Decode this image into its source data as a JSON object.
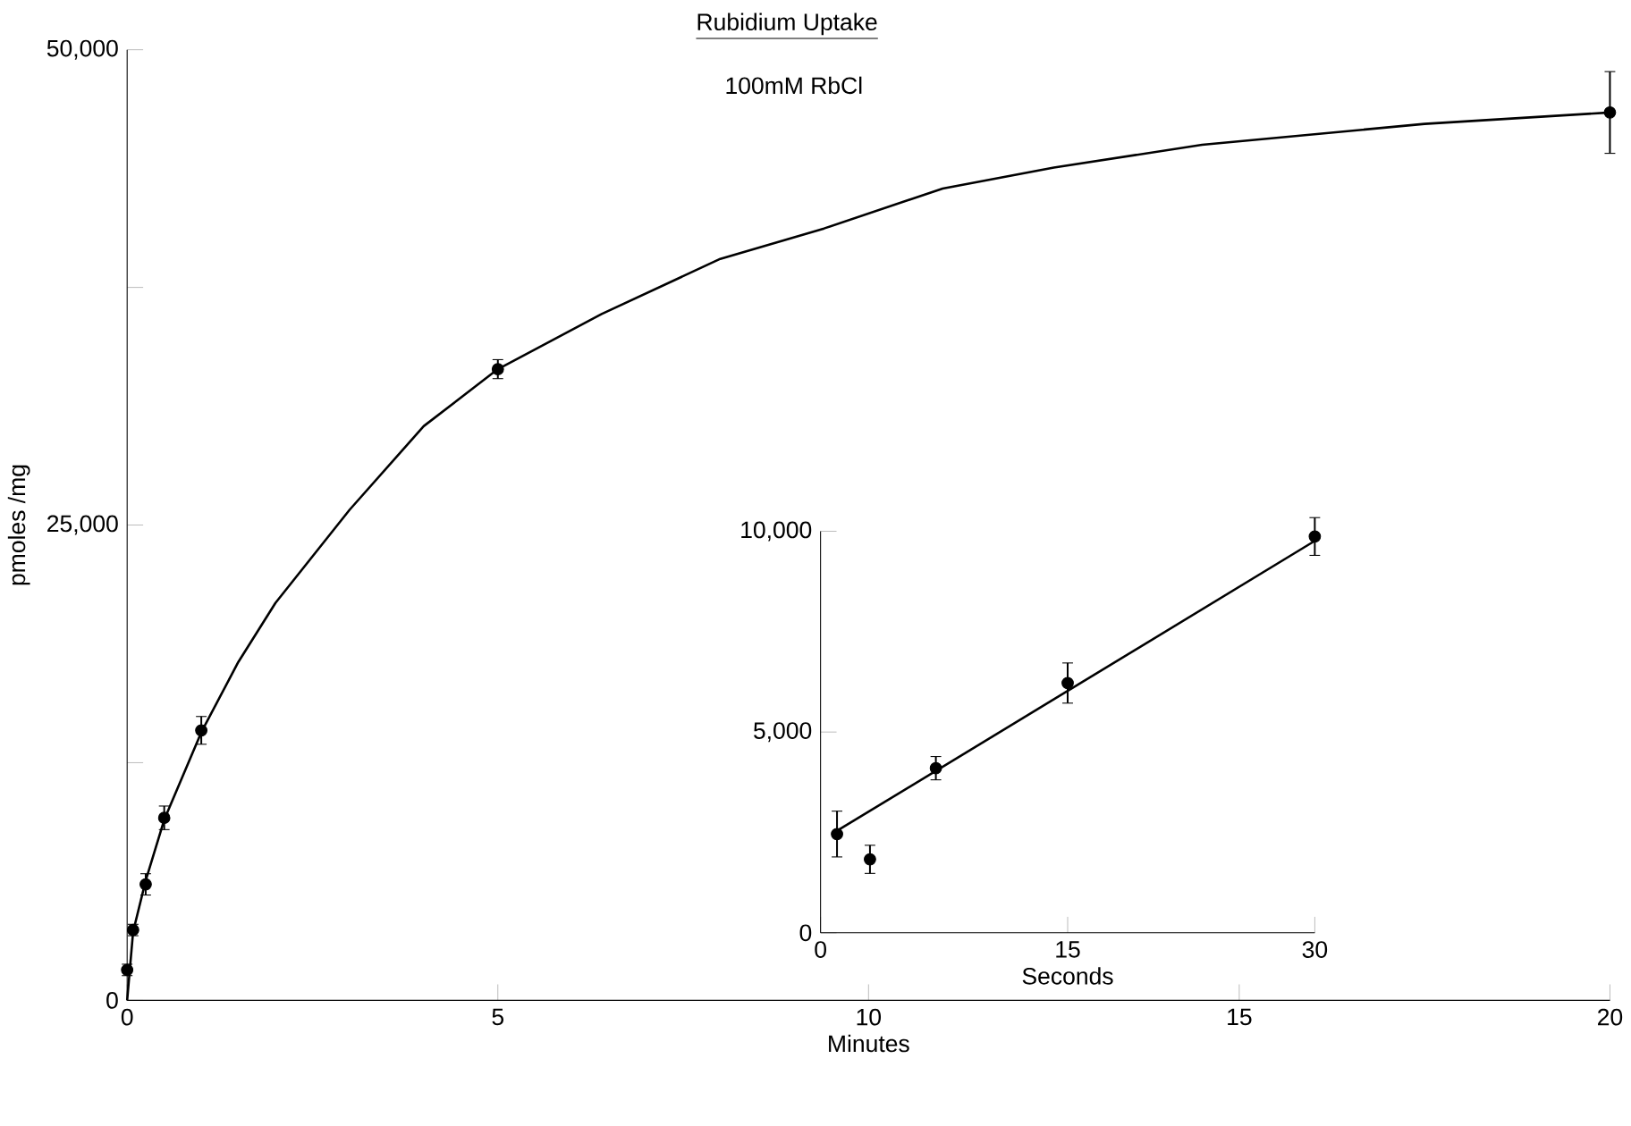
{
  "chart_data": [
    {
      "type": "scatter",
      "title": "Rubidium Uptake",
      "subtitle": "100mM RbCl",
      "xlabel": "Minutes",
      "ylabel": "pmoles /mg",
      "xlim": [
        0,
        20
      ],
      "ylim": [
        0,
        50000
      ],
      "xticks": [
        0,
        5,
        10,
        15,
        20
      ],
      "yticks": [
        0,
        {
          "value": 12500,
          "label": null
        },
        {
          "value": 25000,
          "label": "25,000"
        },
        {
          "value": 37500,
          "label": null
        },
        {
          "value": 50000,
          "label": "50,000"
        }
      ],
      "grid": false,
      "marker": "circle",
      "series": [
        {
          "type": "scatter",
          "color": "#000000",
          "x": [
            0,
            0.08,
            0.25,
            0.5,
            1,
            5,
            20
          ],
          "values": [
            1600,
            3700,
            6100,
            9600,
            14200,
            33200,
            46700
          ],
          "errors": [
            300,
            300,
            560,
            620,
            730,
            500,
            2150
          ]
        },
        {
          "type": "line",
          "color": "#000000",
          "marker": "none",
          "x": [
            0,
            0.08,
            0.25,
            0.5,
            1,
            1.5,
            2,
            3,
            4,
            5,
            6.4,
            8,
            9.4,
            11,
            12.5,
            14.5,
            17.5,
            20
          ],
          "values": [
            0,
            3600,
            6300,
            9500,
            14100,
            17800,
            20900,
            25800,
            30200,
            33200,
            36100,
            39000,
            40600,
            42700,
            43800,
            45000,
            46100,
            46700
          ]
        }
      ]
    },
    {
      "type": "scatter",
      "xlabel": "Seconds",
      "xlim": [
        0,
        30
      ],
      "ylim": [
        0,
        10000
      ],
      "xticks": [
        0,
        15,
        30
      ],
      "yticks": [
        0,
        {
          "value": 5000,
          "label": "5,000"
        },
        {
          "value": 10000,
          "label": "10,000"
        }
      ],
      "grid": false,
      "marker": "circle",
      "series": [
        {
          "type": "scatter",
          "color": "#000000",
          "x": [
            1,
            3,
            7,
            15,
            30
          ],
          "values": [
            2460,
            1830,
            4100,
            6220,
            9870
          ],
          "errors": [
            570,
            350,
            290,
            500,
            470
          ]
        },
        {
          "type": "line",
          "color": "#000000",
          "marker": "none",
          "x": [
            1,
            30
          ],
          "values": [
            2540,
            9760
          ]
        }
      ]
    }
  ]
}
